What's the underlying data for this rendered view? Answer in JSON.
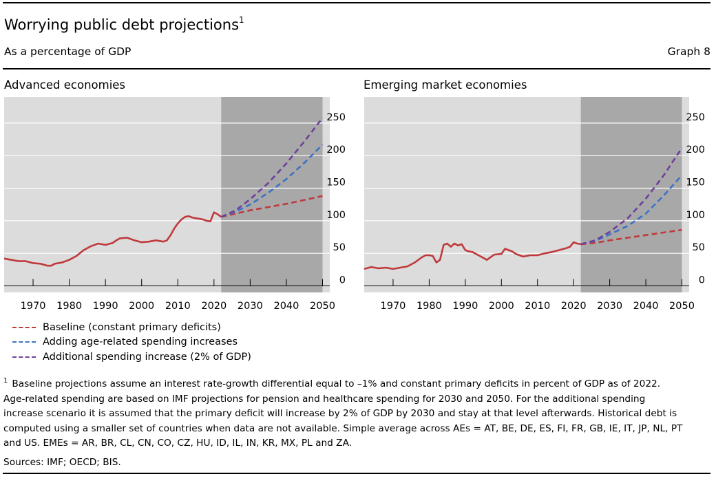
{
  "header": {
    "title": "Worrying public debt projections",
    "title_footnote_mark": "1",
    "subtitle": "As a percentage of GDP",
    "graph_number": "Graph 8"
  },
  "legend": [
    {
      "label": "Baseline (constant primary deficits)",
      "color": "#c0393b"
    },
    {
      "label": "Adding age-related spending increases",
      "color": "#3a72c4"
    },
    {
      "label": "Additional spending increase (2% of GDP)",
      "color": "#6e3f9a"
    }
  ],
  "colors": {
    "plot_background": "#dcdcdc",
    "projection_shading": "#a8a8a8",
    "gridline": "#ffffff",
    "historical": "#c0393b",
    "baseline": "#c0393b",
    "age_related": "#3a72c4",
    "additional": "#6e3f9a"
  },
  "chart_data": [
    {
      "type": "line",
      "title": "Advanced economies",
      "x_ticks": [
        1970,
        1980,
        1990,
        2000,
        2010,
        2020,
        2030,
        2040,
        2050
      ],
      "y_ticks": [
        0,
        50,
        100,
        150,
        200,
        250
      ],
      "xlim": [
        1962,
        2052
      ],
      "ylim": [
        -10,
        290
      ],
      "y_axis_side": "right",
      "grid": true,
      "projection_shaded_from": 2022,
      "projection_shaded_to": 2050,
      "historical": {
        "x": [
          1962,
          1964,
          1966,
          1968,
          1970,
          1972,
          1974,
          1975,
          1976,
          1978,
          1980,
          1982,
          1984,
          1986,
          1988,
          1990,
          1992,
          1993,
          1994,
          1996,
          1998,
          2000,
          2002,
          2004,
          2006,
          2007,
          2008,
          2009,
          2010,
          2011,
          2012,
          2013,
          2014,
          2015,
          2016,
          2017,
          2018,
          2019,
          2020,
          2021,
          2022
        ],
        "y": [
          42,
          40,
          38,
          38,
          35,
          34,
          31,
          31,
          34,
          36,
          40,
          46,
          55,
          61,
          65,
          63,
          66,
          70,
          73,
          74,
          70,
          67,
          68,
          70,
          68,
          70,
          78,
          88,
          96,
          102,
          106,
          107,
          105,
          104,
          103,
          102,
          100,
          99,
          113,
          110,
          106
        ]
      },
      "series": [
        {
          "name": "Baseline (constant primary deficits)",
          "x": [
            2022,
            2026,
            2030,
            2035,
            2040,
            2045,
            2050
          ],
          "y": [
            106,
            111,
            116,
            121,
            126,
            132,
            138
          ]
        },
        {
          "name": "Adding age-related spending increases",
          "x": [
            2022,
            2026,
            2030,
            2035,
            2040,
            2045,
            2050
          ],
          "y": [
            106,
            114,
            125,
            143,
            164,
            189,
            217
          ]
        },
        {
          "name": "Additional spending increase (2% of GDP)",
          "x": [
            2022,
            2026,
            2030,
            2035,
            2040,
            2045,
            2050
          ],
          "y": [
            106,
            116,
            133,
            158,
            188,
            222,
            258
          ]
        }
      ]
    },
    {
      "type": "line",
      "title": "Emerging market economies",
      "x_ticks": [
        1970,
        1980,
        1990,
        2000,
        2010,
        2020,
        2030,
        2040,
        2050
      ],
      "y_ticks": [
        0,
        50,
        100,
        150,
        200,
        250
      ],
      "xlim": [
        1962,
        2052
      ],
      "ylim": [
        -10,
        290
      ],
      "y_axis_side": "right",
      "grid": true,
      "projection_shaded_from": 2022,
      "projection_shaded_to": 2050,
      "historical": {
        "x": [
          1962,
          1964,
          1966,
          1968,
          1970,
          1972,
          1974,
          1976,
          1978,
          1979,
          1980,
          1981,
          1982,
          1983,
          1984,
          1985,
          1986,
          1987,
          1988,
          1989,
          1990,
          1991,
          1992,
          1994,
          1996,
          1998,
          2000,
          2001,
          2002,
          2003,
          2004,
          2005,
          2006,
          2008,
          2010,
          2012,
          2014,
          2016,
          2018,
          2019,
          2020,
          2021,
          2022
        ],
        "y": [
          26,
          29,
          27,
          28,
          26,
          28,
          30,
          36,
          44,
          47,
          47,
          46,
          36,
          40,
          63,
          65,
          60,
          65,
          62,
          64,
          55,
          53,
          52,
          46,
          40,
          48,
          49,
          57,
          55,
          53,
          49,
          47,
          45,
          47,
          47,
          50,
          52,
          55,
          58,
          60,
          67,
          65,
          64
        ]
      },
      "series": [
        {
          "name": "Baseline (constant primary deficits)",
          "x": [
            2022,
            2026,
            2030,
            2035,
            2040,
            2045,
            2050
          ],
          "y": [
            64,
            66,
            70,
            74,
            78,
            82,
            86
          ]
        },
        {
          "name": "Adding age-related spending increases",
          "x": [
            2022,
            2026,
            2030,
            2035,
            2040,
            2045,
            2050
          ],
          "y": [
            64,
            69,
            79,
            92,
            111,
            139,
            170
          ]
        },
        {
          "name": "Additional spending increase (2% of GDP)",
          "x": [
            2022,
            2026,
            2030,
            2035,
            2040,
            2045,
            2050
          ],
          "y": [
            64,
            70,
            83,
            104,
            134,
            170,
            212
          ]
        }
      ]
    }
  ],
  "footnote": {
    "mark": "1",
    "lines": [
      "Baseline projections assume an interest rate-growth differential equal to –1% and constant primary deficits in percent of GDP as of 2022.",
      "Age-related spending are based on IMF projections for pension and healthcare spending for 2030 and 2050. For the additional spending",
      "increase scenario it is assumed that the primary deficit will increase by 2% of GDP by 2030 and stay at that level afterwards. Historical debt is",
      "computed using a smaller set of countries when data are not available. Simple average across AEs = AT, BE, DE, ES, FI, FR, GB, IE, IT, JP, NL, PT",
      "and US. EMEs = AR, BR, CL, CN, CO, CZ, HU, ID, IL, IN, KR, MX, PL and ZA."
    ]
  },
  "sources": "Sources: IMF; OECD; BIS."
}
